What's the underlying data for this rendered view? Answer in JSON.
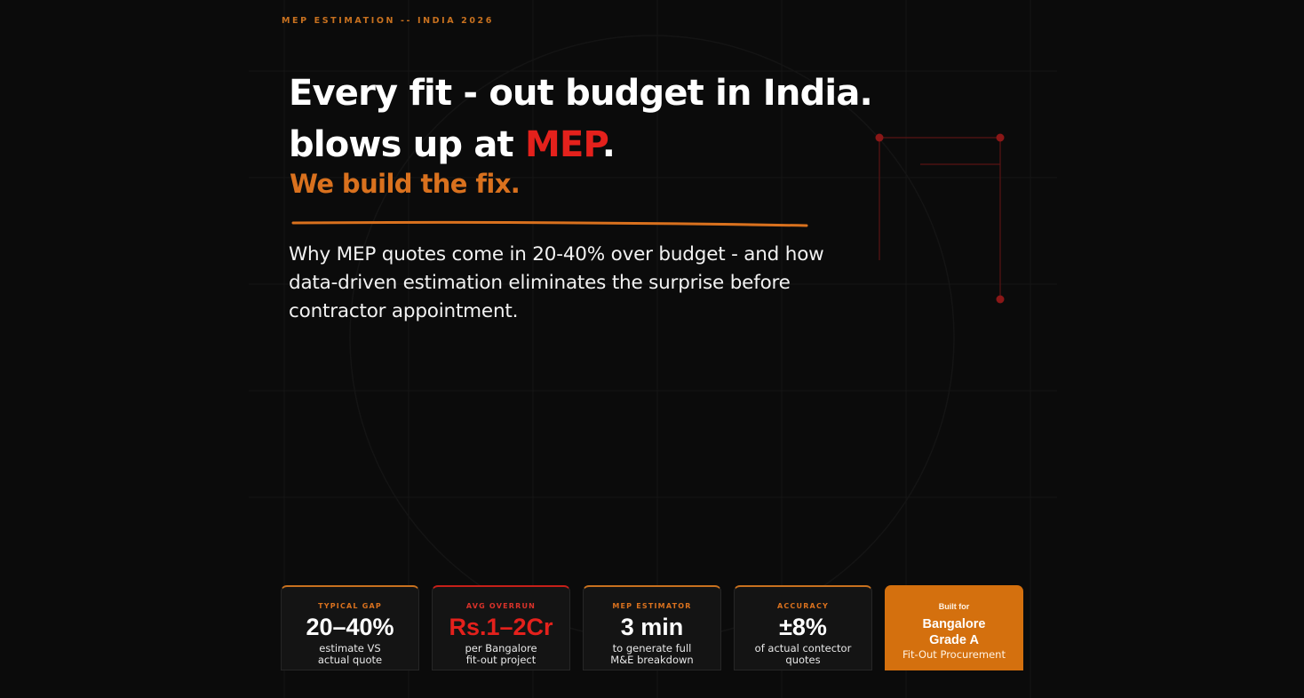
{
  "eyebrow": "MEP ESTIMATION -- INDIA 2026",
  "headline": {
    "line1": "Every fit - out budget in India.",
    "line2_prefix": "blows up at ",
    "line2_accent": "MEP",
    "line2_suffix": "."
  },
  "subhead": "We build the fix.",
  "lede": "Why MEP quotes come in 20-40% over budget - and how data-driven estimation eliminates the surprise before contractor appointment.",
  "colors": {
    "background": "#0b0b0b",
    "accent_orange": "#d9711e",
    "accent_red": "#e4211c",
    "card_bg": "#141414",
    "cta_orange": "#d4700e"
  },
  "stats": [
    {
      "label": "TYPICAL GAP",
      "value": "20–40%",
      "desc_line1": "estimate VS",
      "desc_line2": "actual quote"
    },
    {
      "label": "AVG OVERRUN",
      "value": "Rs.1–2Cr",
      "desc_line1": "per Bangalore",
      "desc_line2": "fit-out project"
    },
    {
      "label": "MEP ESTIMATOR",
      "value": "3 min",
      "desc_line1": "to generate full",
      "desc_line2": "M&E breakdown"
    },
    {
      "label": "ACCURACY",
      "value": "±8%",
      "desc_line1": "of actual contector",
      "desc_line2": "quotes"
    }
  ],
  "built_for": {
    "label": "Built for",
    "line1": "Bangalore",
    "line2": "Grade A",
    "line3": "Fit-Out Procurement"
  }
}
